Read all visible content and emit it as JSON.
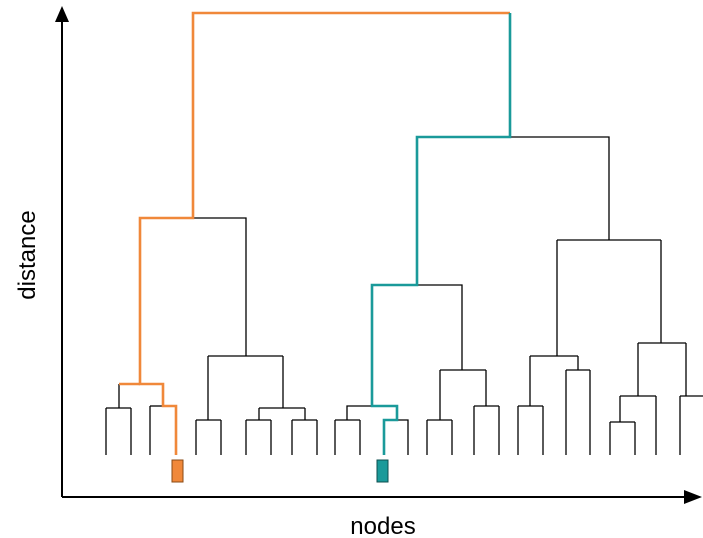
{
  "axes": {
    "x_label": "nodes",
    "y_label": "distance"
  },
  "colors": {
    "tree": "#000000",
    "axis": "#000000",
    "highlight_a": "#f0883a",
    "highlight_b": "#1a9a9a"
  },
  "diagram": {
    "type": "dendrogram",
    "highlighted_nodes": [
      "orange-marker",
      "teal-marker"
    ]
  }
}
